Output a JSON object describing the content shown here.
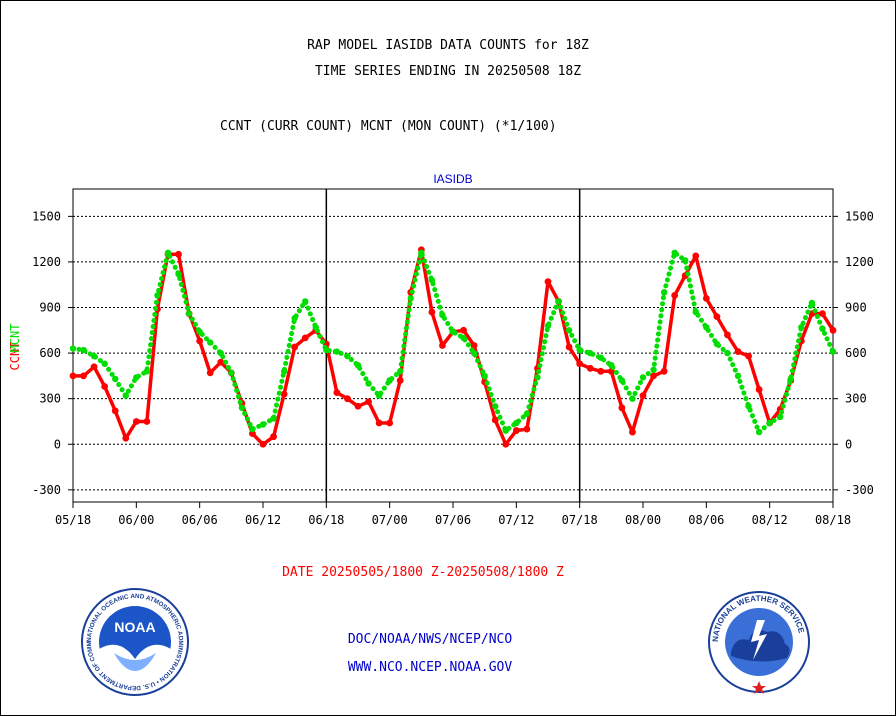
{
  "header": {
    "title_line1": "RAP MODEL IASIDB DATA COUNTS for 18Z",
    "title_line2": "TIME SERIES ENDING IN 20250508 18Z",
    "subtitle": "CCNT (CURR COUNT) MCNT (MON COUNT) (*1/100)"
  },
  "footer": {
    "date_range": "DATE 20250505/1800 Z-20250508/1800 Z",
    "credit_line1": "DOC/NOAA/NWS/NCEP/NCO",
    "credit_line2": "WWW.NCO.NCEP.NOAA.GOV"
  },
  "logos": {
    "noaa_text": "NOAA",
    "noaa_ring": "NATIONAL OCEANIC AND ATMOSPHERIC ADMINISTRATION • U.S. DEPARTMENT OF COMMERCE •",
    "nws_ring": "NATIONAL WEATHER SERVICE"
  },
  "colors": {
    "ccnt": "#ff0000",
    "mcnt": "#00dd00",
    "panel_label": "#0000cc",
    "axis": "#000000"
  },
  "chart_data": {
    "type": "line",
    "panel_label": "IASIDB",
    "ylabel_ccnt": "CCNT",
    "ylabel_mcnt": "MCNT",
    "ylim": [
      -380,
      1680
    ],
    "yticks": [
      -300,
      0,
      300,
      600,
      900,
      1200,
      1500
    ],
    "grid": true,
    "x_tick_labels": [
      "05/18",
      "06/00",
      "06/06",
      "06/12",
      "06/18",
      "07/00",
      "07/06",
      "07/12",
      "07/18",
      "08/00",
      "08/06",
      "08/12",
      "08/18"
    ],
    "x_range_hours": [
      0,
      72
    ],
    "series": [
      {
        "name": "CCNT",
        "style": "solid",
        "x": [
          0,
          1,
          2,
          3,
          4,
          5,
          6,
          7,
          8,
          9,
          10,
          11,
          12,
          13,
          14,
          15,
          16,
          17,
          18,
          19,
          20,
          21,
          22,
          23,
          24,
          25,
          26,
          27,
          28,
          29,
          30,
          31,
          32,
          33,
          34,
          35,
          36,
          37,
          38,
          39,
          40,
          41,
          42,
          43,
          44,
          45,
          46,
          47,
          48,
          49,
          50,
          51,
          52,
          53,
          54,
          55,
          56,
          57,
          58,
          59,
          60,
          61,
          62,
          63,
          64,
          65,
          66,
          67,
          68,
          69,
          70,
          71,
          72
        ],
        "values": [
          450,
          450,
          510,
          380,
          220,
          40,
          150,
          150,
          890,
          1250,
          1250,
          860,
          680,
          470,
          540,
          470,
          270,
          70,
          0,
          50,
          330,
          640,
          700,
          750,
          660,
          340,
          300,
          250,
          280,
          140,
          140,
          420,
          1000,
          1280,
          870,
          650,
          740,
          750,
          650,
          410,
          160,
          0,
          90,
          100,
          500,
          1070,
          940,
          640,
          530,
          500,
          480,
          480,
          240,
          80,
          320,
          450,
          480,
          980,
          1110,
          1240,
          960,
          840,
          720,
          610,
          580,
          360,
          140,
          230,
          420,
          680,
          860,
          860,
          750
        ]
      },
      {
        "name": "MCNT",
        "style": "dotted",
        "x": [
          0,
          1,
          2,
          3,
          4,
          5,
          6,
          7,
          8,
          9,
          10,
          11,
          12,
          13,
          14,
          15,
          16,
          17,
          18,
          19,
          20,
          21,
          22,
          23,
          24,
          25,
          26,
          27,
          28,
          29,
          30,
          31,
          32,
          33,
          34,
          35,
          36,
          37,
          38,
          39,
          40,
          41,
          42,
          43,
          44,
          45,
          46,
          47,
          48,
          49,
          50,
          51,
          52,
          53,
          54,
          55,
          56,
          57,
          58,
          59,
          60,
          61,
          62,
          63,
          64,
          65,
          66,
          67,
          68,
          69,
          70,
          71,
          72
        ],
        "values": [
          630,
          620,
          580,
          530,
          430,
          320,
          440,
          480,
          980,
          1260,
          1120,
          860,
          740,
          670,
          600,
          470,
          240,
          100,
          130,
          170,
          480,
          830,
          940,
          770,
          620,
          610,
          580,
          520,
          400,
          320,
          420,
          480,
          960,
          1260,
          1080,
          850,
          740,
          700,
          600,
          450,
          250,
          90,
          140,
          200,
          440,
          780,
          940,
          750,
          620,
          600,
          570,
          520,
          420,
          300,
          440,
          490,
          1000,
          1260,
          1210,
          870,
          770,
          660,
          600,
          450,
          250,
          80,
          140,
          180,
          430,
          770,
          930,
          760,
          610
        ]
      }
    ]
  }
}
